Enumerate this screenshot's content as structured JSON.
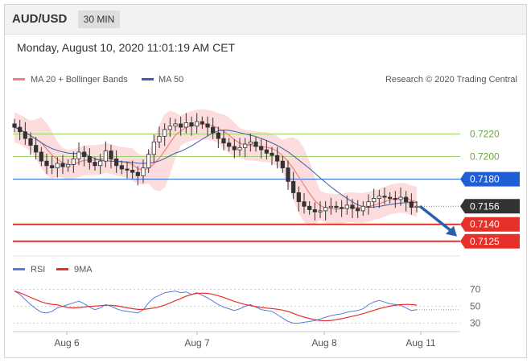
{
  "header": {
    "symbol": "AUD/USD",
    "timeframe": "30 MIN",
    "datetime": "Monday, August 10, 2020 11:01:19 AM CET"
  },
  "legend": {
    "ma20_bb": "MA 20 + Bollinger Bands",
    "ma50": "MA 50",
    "credit": "Research © 2020 Trading Central",
    "rsi": "RSI",
    "rsi_ma": "9MA"
  },
  "colors": {
    "ma20": "#f08080",
    "bb_fill": "#fbd3d3",
    "ma50": "#3f5ea8",
    "resistance": "#9bd26a",
    "pivot": "#1f5fd6",
    "support": "#e8302a",
    "last": "#333333",
    "rsi": "#5b7bd8",
    "rsi_ma": "#e8302a",
    "candle": "#333333"
  },
  "chart_data": [
    {
      "type": "candlestick",
      "title": "AUD/USD 30 MIN",
      "x_ticks": [
        "Aug 6",
        "Aug 7",
        "Aug 8",
        "Aug 11"
      ],
      "y_levels": [
        {
          "value": 0.722,
          "label": "0.7220",
          "role": "resistance"
        },
        {
          "value": 0.72,
          "label": "0.7200",
          "role": "resistance"
        },
        {
          "value": 0.718,
          "label": "0.7180",
          "role": "pivot"
        },
        {
          "value": 0.7156,
          "label": "0.7156",
          "role": "last"
        },
        {
          "value": 0.714,
          "label": "0.7140",
          "role": "support"
        },
        {
          "value": 0.7125,
          "label": "0.7125",
          "role": "support"
        }
      ],
      "ylim": [
        0.7112,
        0.7256
      ],
      "close_path": [
        0.7226,
        0.7222,
        0.7216,
        0.721,
        0.7204,
        0.7196,
        0.7192,
        0.719,
        0.7194,
        0.7191,
        0.7193,
        0.7198,
        0.7204,
        0.72,
        0.7195,
        0.7192,
        0.7196,
        0.7205,
        0.7198,
        0.7192,
        0.7189,
        0.7188,
        0.7186,
        0.7183,
        0.719,
        0.7202,
        0.7213,
        0.7218,
        0.7224,
        0.7227,
        0.7229,
        0.7226,
        0.723,
        0.7227,
        0.7231,
        0.7229,
        0.7226,
        0.7221,
        0.7216,
        0.7212,
        0.7209,
        0.7206,
        0.7208,
        0.7211,
        0.7213,
        0.7209,
        0.7206,
        0.7203,
        0.7201,
        0.7196,
        0.719,
        0.7178,
        0.7168,
        0.716,
        0.7156,
        0.7153,
        0.7151,
        0.7152,
        0.7155,
        0.7156,
        0.7155,
        0.7154,
        0.7157,
        0.7154,
        0.7152,
        0.7156,
        0.716,
        0.7163,
        0.7165,
        0.7164,
        0.7163,
        0.7162,
        0.7164,
        0.716,
        0.7155,
        0.7156
      ],
      "projection": {
        "from": 0.7156,
        "to": 0.7125
      }
    },
    {
      "type": "line",
      "title": "RSI",
      "series": [
        {
          "name": "RSI"
        },
        {
          "name": "9MA"
        }
      ],
      "y_ticks": [
        70,
        50,
        30
      ],
      "ylim": [
        20,
        80
      ],
      "rsi_values": [
        68,
        64,
        58,
        52,
        47,
        43,
        42,
        44,
        48,
        50,
        52,
        54,
        56,
        53,
        49,
        46,
        48,
        52,
        50,
        47,
        45,
        44,
        43,
        42,
        46,
        54,
        60,
        63,
        66,
        67,
        68,
        66,
        67,
        64,
        66,
        63,
        60,
        56,
        52,
        49,
        47,
        45,
        47,
        50,
        52,
        49,
        46,
        45,
        44,
        40,
        36,
        32,
        30,
        30,
        31,
        32,
        33,
        35,
        37,
        39,
        40,
        41,
        43,
        44,
        45,
        47,
        52,
        55,
        57,
        55,
        53,
        52,
        51,
        48,
        45,
        46
      ]
    }
  ]
}
